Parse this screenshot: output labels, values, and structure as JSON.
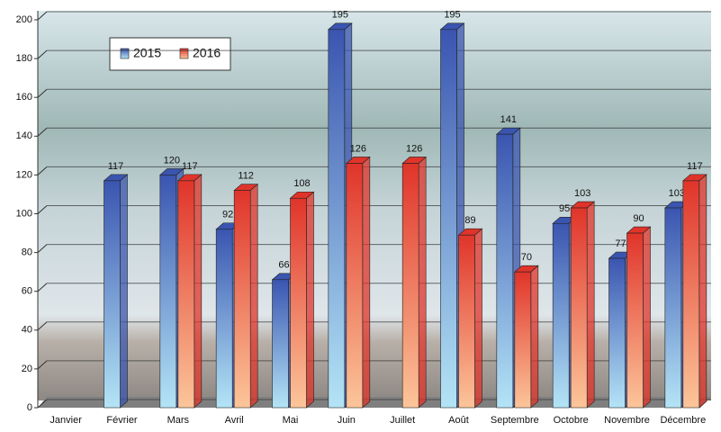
{
  "chart_data": {
    "type": "bar",
    "categories": [
      "Janvier",
      "Février",
      "Mars",
      "Avril",
      "Mai",
      "Juin",
      "Juillet",
      "Août",
      "Septembre",
      "Octobre",
      "Novembre",
      "Décembre"
    ],
    "series": [
      {
        "name": "2015",
        "color": "#3a55b0",
        "values": [
          null,
          117,
          120,
          92,
          66,
          195,
          null,
          195,
          141,
          95,
          77,
          103
        ]
      },
      {
        "name": "2016",
        "color": "#e0342a",
        "values": [
          null,
          null,
          117,
          112,
          108,
          126,
          126,
          89,
          70,
          103,
          90,
          117
        ]
      }
    ],
    "ylim": [
      0,
      200
    ],
    "yticks": [
      0,
      20,
      40,
      60,
      80,
      100,
      120,
      140,
      160,
      180,
      200
    ],
    "grid": true
  }
}
